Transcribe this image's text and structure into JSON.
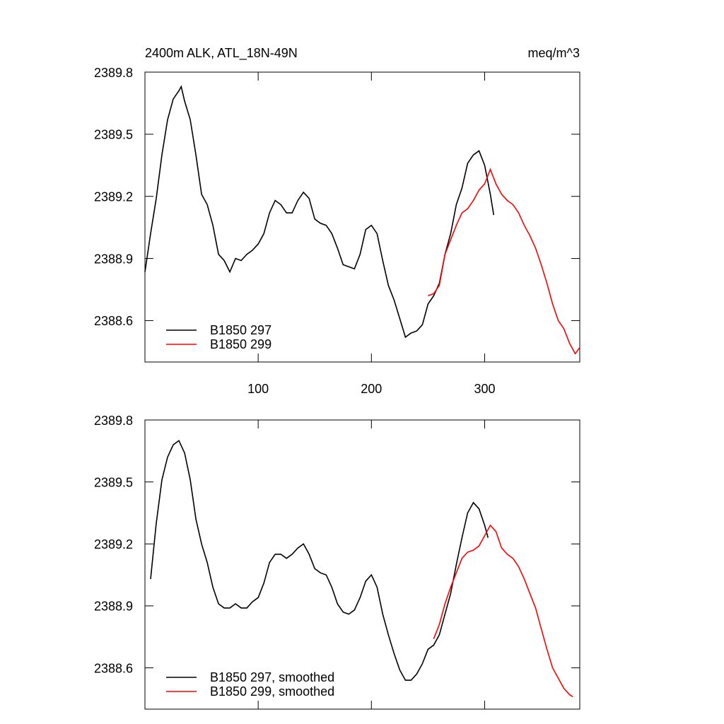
{
  "chart_data": [
    {
      "type": "line",
      "title": "2400m ALK, ATL_18N-49N",
      "units": "meq/m^3",
      "xlim": [
        0,
        384
      ],
      "xticks": [
        100,
        200,
        300
      ],
      "ylim": [
        2388.4,
        2389.8
      ],
      "yticks": [
        2388.6,
        2388.9,
        2389.2,
        2389.5,
        2389.8
      ],
      "legend": "lower left",
      "series": [
        {
          "name": "B1850 297",
          "color": "#000000",
          "x": [
            0,
            5,
            10,
            15,
            20,
            25,
            30,
            32,
            35,
            40,
            45,
            50,
            55,
            60,
            65,
            70,
            75,
            80,
            85,
            90,
            95,
            100,
            105,
            110,
            115,
            120,
            125,
            130,
            135,
            140,
            145,
            150,
            155,
            160,
            165,
            170,
            175,
            180,
            185,
            190,
            195,
            200,
            205,
            210,
            215,
            220,
            225,
            230,
            235,
            240,
            245,
            250,
            255,
            260,
            265,
            270,
            275,
            280,
            285,
            290,
            295,
            300,
            305,
            308
          ],
          "values": [
            2388.835,
            2389.02,
            2389.19,
            2389.4,
            2389.57,
            2389.67,
            2389.71,
            2389.73,
            2389.66,
            2389.57,
            2389.4,
            2389.21,
            2389.16,
            2389.06,
            2388.92,
            2388.89,
            2388.835,
            2388.9,
            2388.89,
            2388.92,
            2388.94,
            2388.97,
            2389.02,
            2389.12,
            2389.18,
            2389.16,
            2389.12,
            2389.12,
            2389.18,
            2389.22,
            2389.19,
            2389.09,
            2389.07,
            2389.06,
            2389.02,
            2388.95,
            2388.87,
            2388.86,
            2388.85,
            2388.92,
            2389.04,
            2389.06,
            2389.02,
            2388.89,
            2388.77,
            2388.7,
            2388.61,
            2388.52,
            2388.54,
            2388.55,
            2388.58,
            2388.68,
            2388.72,
            2388.78,
            2388.92,
            2389.02,
            2389.16,
            2389.24,
            2389.36,
            2389.4,
            2389.42,
            2389.35,
            2389.21,
            2389.11
          ]
        },
        {
          "name": "B1850 299",
          "color": "#ff0000",
          "x": [
            250,
            255,
            260,
            265,
            270,
            275,
            280,
            285,
            290,
            295,
            300,
            305,
            310,
            315,
            320,
            325,
            330,
            335,
            340,
            345,
            350,
            355,
            360,
            365,
            370,
            375,
            380,
            384
          ],
          "values": [
            2388.72,
            2388.73,
            2388.77,
            2388.92,
            2388.99,
            2389.06,
            2389.12,
            2389.14,
            2389.18,
            2389.23,
            2389.26,
            2389.33,
            2389.26,
            2389.21,
            2389.18,
            2389.16,
            2389.12,
            2389.06,
            2389.01,
            2388.95,
            2388.87,
            2388.78,
            2388.68,
            2388.6,
            2388.56,
            2388.49,
            2388.44,
            2388.47
          ]
        }
      ]
    },
    {
      "type": "line",
      "xlim": [
        0,
        384
      ],
      "ylim": [
        2388.4,
        2389.8
      ],
      "yticks": [
        2388.6,
        2388.9,
        2389.2,
        2389.5,
        2389.8
      ],
      "legend": "lower left",
      "series": [
        {
          "name": "B1850 297, smoothed",
          "color": "#000000",
          "x": [
            5,
            10,
            15,
            20,
            25,
            30,
            35,
            40,
            45,
            50,
            55,
            60,
            65,
            70,
            75,
            80,
            85,
            90,
            95,
            100,
            105,
            110,
            115,
            120,
            125,
            130,
            135,
            140,
            145,
            150,
            155,
            160,
            165,
            170,
            175,
            180,
            185,
            190,
            195,
            200,
            205,
            210,
            215,
            220,
            225,
            230,
            235,
            240,
            245,
            250,
            255,
            260,
            265,
            270,
            275,
            280,
            285,
            290,
            295,
            300,
            303
          ],
          "values": [
            2389.03,
            2389.3,
            2389.51,
            2389.62,
            2389.68,
            2389.7,
            2389.64,
            2389.51,
            2389.32,
            2389.2,
            2389.11,
            2388.99,
            2388.91,
            2388.89,
            2388.89,
            2388.91,
            2388.89,
            2388.89,
            2388.92,
            2388.94,
            2389.01,
            2389.11,
            2389.15,
            2389.15,
            2389.13,
            2389.15,
            2389.18,
            2389.2,
            2389.15,
            2389.08,
            2389.06,
            2389.05,
            2388.99,
            2388.91,
            2388.87,
            2388.86,
            2388.88,
            2388.94,
            2389.02,
            2389.05,
            2388.99,
            2388.86,
            2388.76,
            2388.67,
            2388.59,
            2388.54,
            2388.54,
            2388.57,
            2388.62,
            2388.69,
            2388.71,
            2388.76,
            2388.86,
            2388.96,
            2389.1,
            2389.23,
            2389.35,
            2389.4,
            2389.37,
            2389.29,
            2389.23
          ]
        },
        {
          "name": "B1850 299, smoothed",
          "color": "#ff0000",
          "x": [
            255,
            260,
            265,
            270,
            275,
            280,
            285,
            290,
            295,
            300,
            305,
            310,
            315,
            320,
            325,
            330,
            335,
            340,
            345,
            350,
            355,
            360,
            365,
            370,
            375,
            378
          ],
          "values": [
            2388.74,
            2388.81,
            2388.91,
            2388.99,
            2389.06,
            2389.13,
            2389.16,
            2389.17,
            2389.19,
            2389.24,
            2389.29,
            2389.26,
            2389.18,
            2389.15,
            2389.13,
            2389.09,
            2389.03,
            2388.96,
            2388.89,
            2388.79,
            2388.69,
            2388.6,
            2388.55,
            2388.5,
            2388.47,
            2388.46
          ]
        }
      ]
    }
  ]
}
